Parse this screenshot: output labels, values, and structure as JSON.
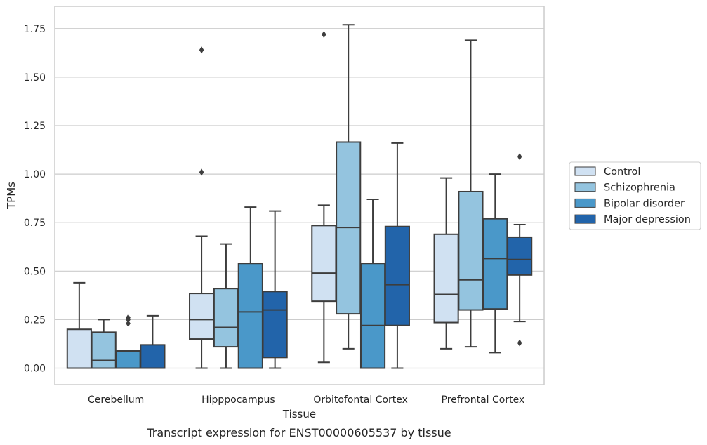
{
  "chart_data": {
    "type": "boxplot",
    "xlabel": "Tissue",
    "ylabel": "TPMs",
    "caption": "Transcript expression for ENST00000605537 by tissue",
    "ylim": [
      -0.085,
      1.865
    ],
    "yticks": [
      0.0,
      0.25,
      0.5,
      0.75,
      1.0,
      1.25,
      1.5,
      1.75
    ],
    "ytick_labels": [
      "0.00",
      "0.25",
      "0.50",
      "0.75",
      "1.00",
      "1.25",
      "1.50",
      "1.75"
    ],
    "grid": "horizontal",
    "legend_position": "outside-right",
    "categories": [
      "Cerebellum",
      "Hipppocampus",
      "Orbitofontal Cortex",
      "Prefrontal Cortex"
    ],
    "series": [
      {
        "name": "Control",
        "color": "#d0e1f2",
        "boxes": [
          {
            "whisker_low": 0.0,
            "q1": 0.0,
            "median": 0.0,
            "q3": 0.2,
            "whisker_high": 0.44,
            "outliers": []
          },
          {
            "whisker_low": 0.0,
            "q1": 0.15,
            "median": 0.25,
            "q3": 0.385,
            "whisker_high": 0.68,
            "outliers": [
              1.01,
              1.64
            ]
          },
          {
            "whisker_low": 0.03,
            "q1": 0.345,
            "median": 0.49,
            "q3": 0.735,
            "whisker_high": 0.84,
            "outliers": [
              1.72
            ]
          },
          {
            "whisker_low": 0.1,
            "q1": 0.235,
            "median": 0.38,
            "q3": 0.69,
            "whisker_high": 0.98,
            "outliers": []
          }
        ]
      },
      {
        "name": "Schizophrenia",
        "color": "#94c4df",
        "boxes": [
          {
            "whisker_low": 0.0,
            "q1": 0.0,
            "median": 0.04,
            "q3": 0.185,
            "whisker_high": 0.25,
            "outliers": []
          },
          {
            "whisker_low": 0.0,
            "q1": 0.11,
            "median": 0.21,
            "q3": 0.41,
            "whisker_high": 0.64,
            "outliers": []
          },
          {
            "whisker_low": 0.1,
            "q1": 0.28,
            "median": 0.725,
            "q3": 1.165,
            "whisker_high": 1.77,
            "outliers": []
          },
          {
            "whisker_low": 0.11,
            "q1": 0.3,
            "median": 0.455,
            "q3": 0.91,
            "whisker_high": 1.69,
            "outliers": []
          }
        ]
      },
      {
        "name": "Bipolar disorder",
        "color": "#4a98c9",
        "boxes": [
          {
            "whisker_low": 0.0,
            "q1": 0.0,
            "median": 0.085,
            "q3": 0.09,
            "whisker_high": 0.09,
            "outliers": [
              0.23,
              0.25,
              0.26
            ]
          },
          {
            "whisker_low": 0.0,
            "q1": 0.0,
            "median": 0.29,
            "q3": 0.54,
            "whisker_high": 0.83,
            "outliers": []
          },
          {
            "whisker_low": 0.0,
            "q1": 0.0,
            "median": 0.22,
            "q3": 0.54,
            "whisker_high": 0.87,
            "outliers": []
          },
          {
            "whisker_low": 0.08,
            "q1": 0.305,
            "median": 0.565,
            "q3": 0.77,
            "whisker_high": 1.0,
            "outliers": []
          }
        ]
      },
      {
        "name": "Major depression",
        "color": "#2264aa",
        "boxes": [
          {
            "whisker_low": 0.0,
            "q1": 0.0,
            "median": 0.0,
            "q3": 0.12,
            "whisker_high": 0.27,
            "outliers": []
          },
          {
            "whisker_low": 0.0,
            "q1": 0.055,
            "median": 0.3,
            "q3": 0.395,
            "whisker_high": 0.81,
            "outliers": []
          },
          {
            "whisker_low": 0.0,
            "q1": 0.22,
            "median": 0.43,
            "q3": 0.73,
            "whisker_high": 1.16,
            "outliers": []
          },
          {
            "whisker_low": 0.24,
            "q1": 0.48,
            "median": 0.56,
            "q3": 0.675,
            "whisker_high": 0.74,
            "outliers": [
              0.13,
              1.09
            ]
          }
        ]
      }
    ]
  },
  "colors": {
    "box_edge": "#3d3d3d",
    "grid": "#cccccc",
    "frame": "#cccccc",
    "text": "#262626"
  }
}
